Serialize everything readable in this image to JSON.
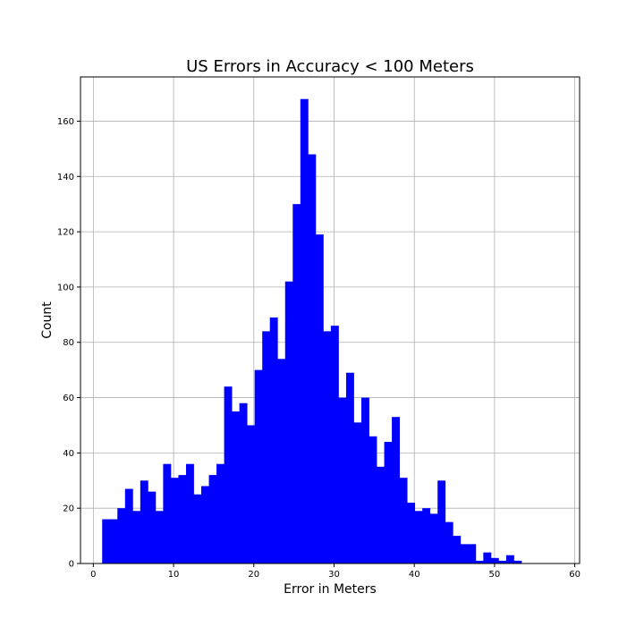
{
  "chart_data": {
    "type": "bar",
    "title": "US Errors in Accuracy < 100 Meters",
    "xlabel": "Error in Meters",
    "ylabel": "Count",
    "xlim": [
      -1.6,
      60.6
    ],
    "ylim": [
      0,
      176
    ],
    "xticks": [
      0,
      10,
      20,
      30,
      40,
      50,
      60
    ],
    "yticks": [
      0,
      20,
      40,
      60,
      80,
      100,
      120,
      140,
      160
    ],
    "grid": true,
    "bar_color": "#0000ff",
    "bin_start": 1.1,
    "bin_width": 0.95,
    "values": [
      16,
      16,
      20,
      27,
      19,
      30,
      26,
      19,
      36,
      31,
      32,
      36,
      25,
      28,
      32,
      36,
      64,
      55,
      58,
      50,
      70,
      84,
      89,
      74,
      102,
      130,
      168,
      148,
      119,
      84,
      86,
      60,
      69,
      51,
      60,
      46,
      35,
      44,
      53,
      31,
      22,
      19,
      20,
      18,
      30,
      15,
      10,
      7,
      7,
      1,
      4,
      2,
      1,
      3,
      1
    ]
  }
}
